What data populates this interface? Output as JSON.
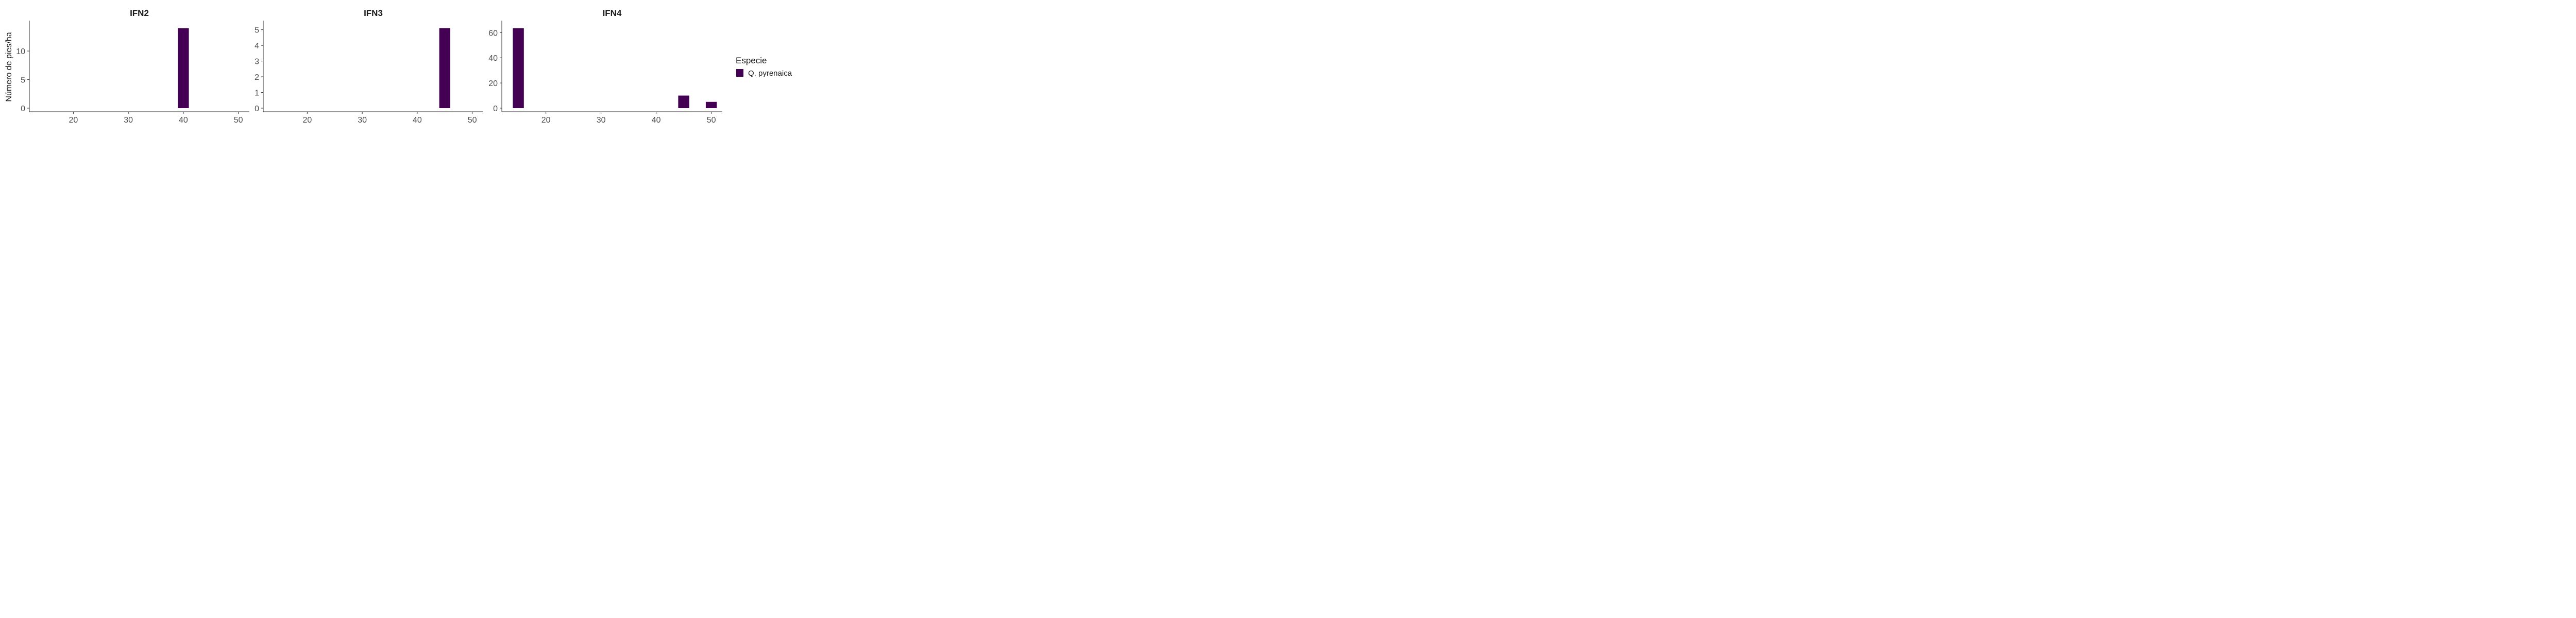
{
  "chart_data": [
    {
      "type": "bar",
      "title": "IFN2",
      "ylabel": "Número de pies/ha",
      "xlabel": "",
      "series": [
        {
          "name": "Q. pyrenaica",
          "x": [
            40
          ],
          "values": [
            14
          ]
        }
      ],
      "xlim": [
        12,
        52
      ],
      "xticks": [
        20,
        30,
        40,
        50
      ],
      "ylim": [
        0,
        14.7
      ],
      "yticks": [
        0,
        5,
        10
      ],
      "grid": false
    },
    {
      "type": "bar",
      "title": "IFN3",
      "ylabel": "",
      "xlabel": "",
      "series": [
        {
          "name": "Q. pyrenaica",
          "x": [
            45
          ],
          "values": [
            5.1
          ]
        }
      ],
      "xlim": [
        12,
        52
      ],
      "xticks": [
        20,
        30,
        40,
        50
      ],
      "ylim": [
        0,
        5.35
      ],
      "yticks": [
        0,
        1,
        2,
        3,
        4,
        5
      ],
      "grid": false
    },
    {
      "type": "bar",
      "title": "IFN4",
      "ylabel": "",
      "xlabel": "",
      "series": [
        {
          "name": "Q. pyrenaica",
          "x": [
            15,
            45,
            50
          ],
          "values": [
            63.5,
            10,
            5
          ]
        }
      ],
      "xlim": [
        12,
        52
      ],
      "xticks": [
        20,
        30,
        40,
        50
      ],
      "ylim": [
        0,
        66.7
      ],
      "yticks": [
        0,
        20,
        40,
        60
      ],
      "grid": false
    }
  ],
  "legend": {
    "title": "Especie",
    "items": [
      {
        "label": "Q. pyrenaica",
        "color": "#440154"
      }
    ],
    "position": "right"
  },
  "colors": {
    "bar": "#440154"
  }
}
